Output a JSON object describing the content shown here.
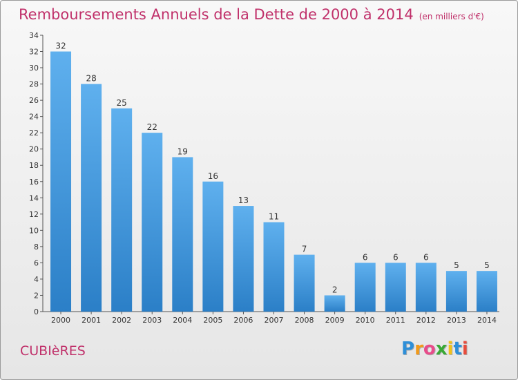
{
  "title": "Remboursements Annuels de la Dette de 2000 à 2014",
  "unit": "(en milliers d'€)",
  "commune": "CUBIèRES",
  "logo": {
    "letters": [
      "P",
      "r",
      "o",
      "x",
      "i",
      "t",
      "i"
    ],
    "colors": [
      "#2e8fd8",
      "#f29a1a",
      "#e84c8a",
      "#39a935",
      "#f2c21a",
      "#2e8fd8",
      "#e84c3d"
    ]
  },
  "colors": {
    "bar_top": "#5fb0ee",
    "bar_bottom": "#2b7fc7",
    "title": "#c0306a"
  },
  "chart_data": {
    "type": "bar",
    "title": "Remboursements Annuels de la Dette de 2000 à 2014",
    "ylabel": "",
    "xlabel": "",
    "ylim": [
      0,
      34
    ],
    "ytick_step": 2,
    "grid": false,
    "categories": [
      "2000",
      "2001",
      "2002",
      "2003",
      "2004",
      "2005",
      "2006",
      "2007",
      "2008",
      "2009",
      "2010",
      "2011",
      "2012",
      "2013",
      "2014"
    ],
    "values": [
      32,
      28,
      25,
      22,
      19,
      16,
      13,
      11,
      7,
      2,
      6,
      6,
      6,
      5,
      5
    ]
  }
}
